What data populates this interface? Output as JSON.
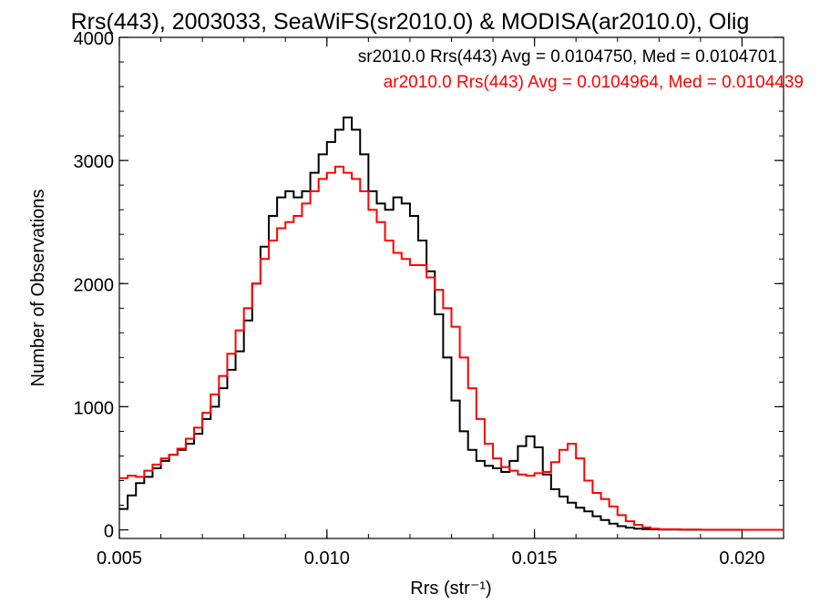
{
  "chart_data": {
    "type": "line",
    "step": true,
    "title": "Rrs(443), 2003033, SeaWiFS(sr2010.0) & MODISA(ar2010.0), Olig",
    "xlabel": "Rrs (str⁻¹)",
    "ylabel": "Number of Observations",
    "xlim": [
      0.005,
      0.021
    ],
    "ylim": [
      -70,
      4000
    ],
    "xticks": [
      0.005,
      0.01,
      0.015,
      0.02
    ],
    "xtick_labels": [
      "0.005",
      "0.010",
      "0.015",
      "0.020"
    ],
    "yticks": [
      0,
      1000,
      2000,
      3000,
      4000
    ],
    "ytick_labels": [
      "0",
      "1000",
      "2000",
      "3000",
      "4000"
    ],
    "legend_position": "top-right",
    "series": [
      {
        "name": "sr2010.0",
        "legend": "sr2010.0 Rrs(443) Avg = 0.0104750, Med = 0.0104701",
        "color": "#000000",
        "x": [
          0.005,
          0.0052,
          0.0054,
          0.0056,
          0.0058,
          0.006,
          0.0062,
          0.0064,
          0.0066,
          0.0068,
          0.007,
          0.0072,
          0.0074,
          0.0076,
          0.0078,
          0.008,
          0.0082,
          0.0084,
          0.0086,
          0.0088,
          0.009,
          0.0092,
          0.0094,
          0.0096,
          0.0098,
          0.01,
          0.0102,
          0.0104,
          0.0106,
          0.0108,
          0.011,
          0.0112,
          0.0114,
          0.0116,
          0.0118,
          0.012,
          0.0122,
          0.0124,
          0.0126,
          0.0128,
          0.013,
          0.0132,
          0.0134,
          0.0136,
          0.0138,
          0.014,
          0.0142,
          0.0144,
          0.0146,
          0.0148,
          0.015,
          0.0152,
          0.0154,
          0.0156,
          0.0158,
          0.016,
          0.0162,
          0.0164,
          0.0166,
          0.0168,
          0.017,
          0.0172,
          0.0174,
          0.0176,
          0.0178,
          0.018,
          0.0185,
          0.019,
          0.02,
          0.021
        ],
        "y": [
          170,
          280,
          380,
          430,
          500,
          560,
          610,
          650,
          700,
          780,
          900,
          1000,
          1150,
          1300,
          1450,
          1700,
          2000,
          2300,
          2550,
          2700,
          2750,
          2700,
          2750,
          2900,
          3050,
          3150,
          3250,
          3350,
          3250,
          3050,
          2750,
          2650,
          2600,
          2700,
          2650,
          2550,
          2350,
          2100,
          1750,
          1400,
          1050,
          800,
          650,
          560,
          520,
          500,
          470,
          560,
          680,
          760,
          670,
          450,
          330,
          270,
          220,
          180,
          150,
          110,
          80,
          50,
          30,
          18,
          10,
          6,
          4,
          2,
          1,
          0,
          0,
          0
        ],
        "note": "approximate"
      },
      {
        "name": "ar2010.0",
        "legend": "ar2010.0 Rrs(443) Avg = 0.0104964, Med = 0.0104439",
        "color": "#ff0000",
        "x": [
          0.005,
          0.0052,
          0.0054,
          0.0056,
          0.0058,
          0.006,
          0.0062,
          0.0064,
          0.0066,
          0.0068,
          0.007,
          0.0072,
          0.0074,
          0.0076,
          0.0078,
          0.008,
          0.0082,
          0.0084,
          0.0086,
          0.0088,
          0.009,
          0.0092,
          0.0094,
          0.0096,
          0.0098,
          0.01,
          0.0102,
          0.0104,
          0.0106,
          0.0108,
          0.011,
          0.0112,
          0.0114,
          0.0116,
          0.0118,
          0.012,
          0.0122,
          0.0124,
          0.0126,
          0.0128,
          0.013,
          0.0132,
          0.0134,
          0.0136,
          0.0138,
          0.014,
          0.0142,
          0.0144,
          0.0146,
          0.0148,
          0.015,
          0.0152,
          0.0154,
          0.0156,
          0.0158,
          0.016,
          0.0162,
          0.0164,
          0.0166,
          0.0168,
          0.017,
          0.0172,
          0.0174,
          0.0176,
          0.0178,
          0.018,
          0.0185,
          0.019,
          0.02,
          0.021
        ],
        "y": [
          420,
          440,
          430,
          480,
          530,
          580,
          610,
          660,
          740,
          830,
          950,
          1100,
          1250,
          1430,
          1620,
          1800,
          2000,
          2200,
          2350,
          2450,
          2500,
          2550,
          2650,
          2750,
          2850,
          2900,
          2950,
          2900,
          2850,
          2750,
          2600,
          2500,
          2350,
          2250,
          2200,
          2150,
          2150,
          2050,
          1950,
          1800,
          1650,
          1400,
          1150,
          900,
          700,
          580,
          510,
          480,
          450,
          440,
          460,
          470,
          550,
          650,
          700,
          580,
          400,
          300,
          250,
          190,
          120,
          70,
          40,
          20,
          10,
          5,
          2,
          1,
          0,
          0
        ],
        "note": "approximate"
      }
    ]
  }
}
